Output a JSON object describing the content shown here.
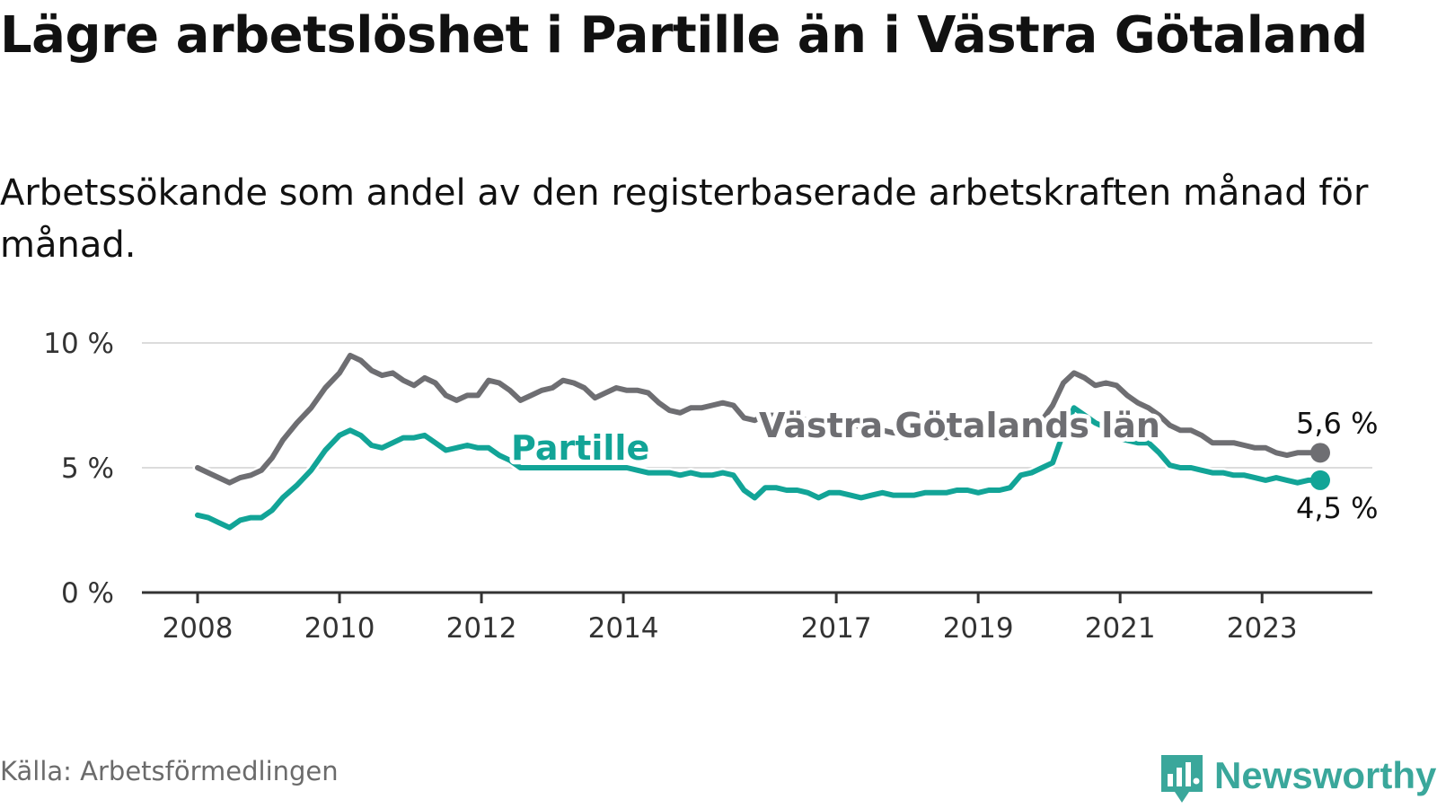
{
  "title": "Lägre arbetslöshet i Partille än i Västra Götaland",
  "subtitle": "Arbetssökande som andel av den registerbaserade arbetskraften månad för månad.",
  "source": "Källa: Arbetsförmedlingen",
  "brand": {
    "name": "Newsworthy",
    "icon": "newsworthy-logo-icon",
    "color": "#3aa79b"
  },
  "colors": {
    "partille": "#12a497",
    "vastra_gotaland": "#6e6e72",
    "grid": "#dcdcdc",
    "axis": "#333333",
    "tick_text": "#333333"
  },
  "chart_data": {
    "type": "line",
    "title": "Lägre arbetslöshet i Partille än i Västra Götaland",
    "xlabel": "",
    "ylabel": "",
    "ylim": [
      0,
      10
    ],
    "xlim": [
      2008,
      2024.9
    ],
    "grid": true,
    "legend": "direct labels on lines",
    "y_ticks": [
      {
        "value": 0,
        "label": "0 %"
      },
      {
        "value": 5,
        "label": "5 %"
      },
      {
        "value": 10,
        "label": "10 %"
      }
    ],
    "x_ticks": [
      {
        "value": 2008,
        "label": "2008"
      },
      {
        "value": 2010,
        "label": "2010"
      },
      {
        "value": 2012,
        "label": "2012"
      },
      {
        "value": 2014,
        "label": "2014"
      },
      {
        "value": 2017,
        "label": "2017"
      },
      {
        "value": 2019,
        "label": "2019"
      },
      {
        "value": 2021,
        "label": "2021"
      },
      {
        "value": 2023,
        "label": "2023"
      }
    ],
    "series": [
      {
        "name": "Västra Götalands län",
        "label": "Västra Götalands län",
        "color": "#6e6e72",
        "end_label": "5,6 %",
        "points": [
          [
            2008.0,
            5.0
          ],
          [
            2008.15,
            4.8
          ],
          [
            2008.3,
            4.6
          ],
          [
            2008.45,
            4.4
          ],
          [
            2008.6,
            4.6
          ],
          [
            2008.75,
            4.7
          ],
          [
            2008.9,
            4.9
          ],
          [
            2009.05,
            5.4
          ],
          [
            2009.2,
            6.1
          ],
          [
            2009.4,
            6.8
          ],
          [
            2009.6,
            7.4
          ],
          [
            2009.8,
            8.2
          ],
          [
            2010.0,
            8.8
          ],
          [
            2010.15,
            9.5
          ],
          [
            2010.3,
            9.3
          ],
          [
            2010.45,
            8.9
          ],
          [
            2010.6,
            8.7
          ],
          [
            2010.75,
            8.8
          ],
          [
            2010.9,
            8.5
          ],
          [
            2011.05,
            8.3
          ],
          [
            2011.2,
            8.6
          ],
          [
            2011.35,
            8.4
          ],
          [
            2011.5,
            7.9
          ],
          [
            2011.65,
            7.7
          ],
          [
            2011.8,
            7.9
          ],
          [
            2011.95,
            7.9
          ],
          [
            2012.1,
            8.5
          ],
          [
            2012.25,
            8.4
          ],
          [
            2012.4,
            8.1
          ],
          [
            2012.55,
            7.7
          ],
          [
            2012.7,
            7.9
          ],
          [
            2012.85,
            8.1
          ],
          [
            2013.0,
            8.2
          ],
          [
            2013.15,
            8.5
          ],
          [
            2013.3,
            8.4
          ],
          [
            2013.45,
            8.2
          ],
          [
            2013.6,
            7.8
          ],
          [
            2013.75,
            8.0
          ],
          [
            2013.9,
            8.2
          ],
          [
            2014.05,
            8.1
          ],
          [
            2014.2,
            8.1
          ],
          [
            2014.35,
            8.0
          ],
          [
            2014.5,
            7.6
          ],
          [
            2014.65,
            7.3
          ],
          [
            2014.8,
            7.2
          ],
          [
            2014.95,
            7.4
          ],
          [
            2015.1,
            7.4
          ],
          [
            2015.25,
            7.5
          ],
          [
            2015.4,
            7.6
          ],
          [
            2015.55,
            7.5
          ],
          [
            2015.7,
            7.0
          ],
          [
            2015.85,
            6.9
          ],
          [
            2016.0,
            7.1
          ],
          [
            2016.15,
            7.1
          ],
          [
            2016.3,
            7.2
          ],
          [
            2016.45,
            7.0
          ],
          [
            2016.6,
            6.9
          ],
          [
            2016.75,
            6.9
          ],
          [
            2016.9,
            6.9
          ],
          [
            2017.05,
            6.9
          ],
          [
            2017.2,
            6.8
          ],
          [
            2017.35,
            6.6
          ],
          [
            2017.5,
            6.6
          ],
          [
            2017.65,
            6.5
          ],
          [
            2017.8,
            6.4
          ],
          [
            2017.95,
            6.4
          ],
          [
            2018.1,
            6.3
          ],
          [
            2018.25,
            6.4
          ],
          [
            2018.4,
            6.3
          ],
          [
            2018.55,
            6.2
          ],
          [
            2018.7,
            6.3
          ],
          [
            2018.85,
            6.3
          ],
          [
            2019.0,
            6.2
          ],
          [
            2019.15,
            6.3
          ],
          [
            2019.3,
            6.4
          ],
          [
            2019.45,
            6.6
          ],
          [
            2019.6,
            6.4
          ],
          [
            2019.75,
            6.5
          ],
          [
            2019.9,
            6.9
          ],
          [
            2020.05,
            7.5
          ],
          [
            2020.2,
            8.4
          ],
          [
            2020.35,
            8.8
          ],
          [
            2020.5,
            8.6
          ],
          [
            2020.65,
            8.3
          ],
          [
            2020.8,
            8.4
          ],
          [
            2020.95,
            8.3
          ],
          [
            2021.1,
            7.9
          ],
          [
            2021.25,
            7.6
          ],
          [
            2021.4,
            7.4
          ],
          [
            2021.55,
            7.1
          ],
          [
            2021.7,
            6.7
          ],
          [
            2021.85,
            6.5
          ],
          [
            2022.0,
            6.5
          ],
          [
            2022.15,
            6.3
          ],
          [
            2022.3,
            6.0
          ],
          [
            2022.45,
            6.0
          ],
          [
            2022.6,
            6.0
          ],
          [
            2022.75,
            5.9
          ],
          [
            2022.9,
            5.8
          ],
          [
            2023.05,
            5.8
          ],
          [
            2023.2,
            5.6
          ],
          [
            2023.35,
            5.5
          ],
          [
            2023.5,
            5.6
          ],
          [
            2023.65,
            5.6
          ],
          [
            2023.82,
            5.6
          ]
        ]
      },
      {
        "name": "Partille",
        "label": "Partille",
        "color": "#12a497",
        "end_label": "4,5 %",
        "points": [
          [
            2008.0,
            3.1
          ],
          [
            2008.15,
            3.0
          ],
          [
            2008.3,
            2.8
          ],
          [
            2008.45,
            2.6
          ],
          [
            2008.6,
            2.9
          ],
          [
            2008.75,
            3.0
          ],
          [
            2008.9,
            3.0
          ],
          [
            2009.05,
            3.3
          ],
          [
            2009.2,
            3.8
          ],
          [
            2009.4,
            4.3
          ],
          [
            2009.6,
            4.9
          ],
          [
            2009.8,
            5.7
          ],
          [
            2010.0,
            6.3
          ],
          [
            2010.15,
            6.5
          ],
          [
            2010.3,
            6.3
          ],
          [
            2010.45,
            5.9
          ],
          [
            2010.6,
            5.8
          ],
          [
            2010.75,
            6.0
          ],
          [
            2010.9,
            6.2
          ],
          [
            2011.05,
            6.2
          ],
          [
            2011.2,
            6.3
          ],
          [
            2011.35,
            6.0
          ],
          [
            2011.5,
            5.7
          ],
          [
            2011.65,
            5.8
          ],
          [
            2011.8,
            5.9
          ],
          [
            2011.95,
            5.8
          ],
          [
            2012.1,
            5.8
          ],
          [
            2012.25,
            5.5
          ],
          [
            2012.4,
            5.3
          ],
          [
            2012.55,
            5.0
          ],
          [
            2012.7,
            5.0
          ],
          [
            2012.85,
            5.0
          ],
          [
            2013.0,
            5.0
          ],
          [
            2013.15,
            5.0
          ],
          [
            2013.3,
            5.0
          ],
          [
            2013.45,
            5.0
          ],
          [
            2013.6,
            5.0
          ],
          [
            2013.75,
            5.0
          ],
          [
            2013.9,
            5.0
          ],
          [
            2014.05,
            5.0
          ],
          [
            2014.2,
            4.9
          ],
          [
            2014.35,
            4.8
          ],
          [
            2014.5,
            4.8
          ],
          [
            2014.65,
            4.8
          ],
          [
            2014.8,
            4.7
          ],
          [
            2014.95,
            4.8
          ],
          [
            2015.1,
            4.7
          ],
          [
            2015.25,
            4.7
          ],
          [
            2015.4,
            4.8
          ],
          [
            2015.55,
            4.7
          ],
          [
            2015.7,
            4.1
          ],
          [
            2015.85,
            3.8
          ],
          [
            2016.0,
            4.2
          ],
          [
            2016.15,
            4.2
          ],
          [
            2016.3,
            4.1
          ],
          [
            2016.45,
            4.1
          ],
          [
            2016.6,
            4.0
          ],
          [
            2016.75,
            3.8
          ],
          [
            2016.9,
            4.0
          ],
          [
            2017.05,
            4.0
          ],
          [
            2017.2,
            3.9
          ],
          [
            2017.35,
            3.8
          ],
          [
            2017.5,
            3.9
          ],
          [
            2017.65,
            4.0
          ],
          [
            2017.8,
            3.9
          ],
          [
            2017.95,
            3.9
          ],
          [
            2018.1,
            3.9
          ],
          [
            2018.25,
            4.0
          ],
          [
            2018.4,
            4.0
          ],
          [
            2018.55,
            4.0
          ],
          [
            2018.7,
            4.1
          ],
          [
            2018.85,
            4.1
          ],
          [
            2019.0,
            4.0
          ],
          [
            2019.15,
            4.1
          ],
          [
            2019.3,
            4.1
          ],
          [
            2019.45,
            4.2
          ],
          [
            2019.6,
            4.7
          ],
          [
            2019.75,
            4.8
          ],
          [
            2019.9,
            5.0
          ],
          [
            2020.05,
            5.2
          ],
          [
            2020.2,
            6.4
          ],
          [
            2020.35,
            7.4
          ],
          [
            2020.5,
            7.1
          ],
          [
            2020.65,
            6.8
          ],
          [
            2020.8,
            6.6
          ],
          [
            2020.95,
            6.2
          ],
          [
            2021.1,
            6.1
          ],
          [
            2021.25,
            6.0
          ],
          [
            2021.4,
            6.0
          ],
          [
            2021.55,
            5.6
          ],
          [
            2021.7,
            5.1
          ],
          [
            2021.85,
            5.0
          ],
          [
            2022.0,
            5.0
          ],
          [
            2022.15,
            4.9
          ],
          [
            2022.3,
            4.8
          ],
          [
            2022.45,
            4.8
          ],
          [
            2022.6,
            4.7
          ],
          [
            2022.75,
            4.7
          ],
          [
            2022.9,
            4.6
          ],
          [
            2023.05,
            4.5
          ],
          [
            2023.2,
            4.6
          ],
          [
            2023.35,
            4.5
          ],
          [
            2023.5,
            4.4
          ],
          [
            2023.65,
            4.5
          ],
          [
            2023.82,
            4.5
          ]
        ]
      }
    ]
  }
}
